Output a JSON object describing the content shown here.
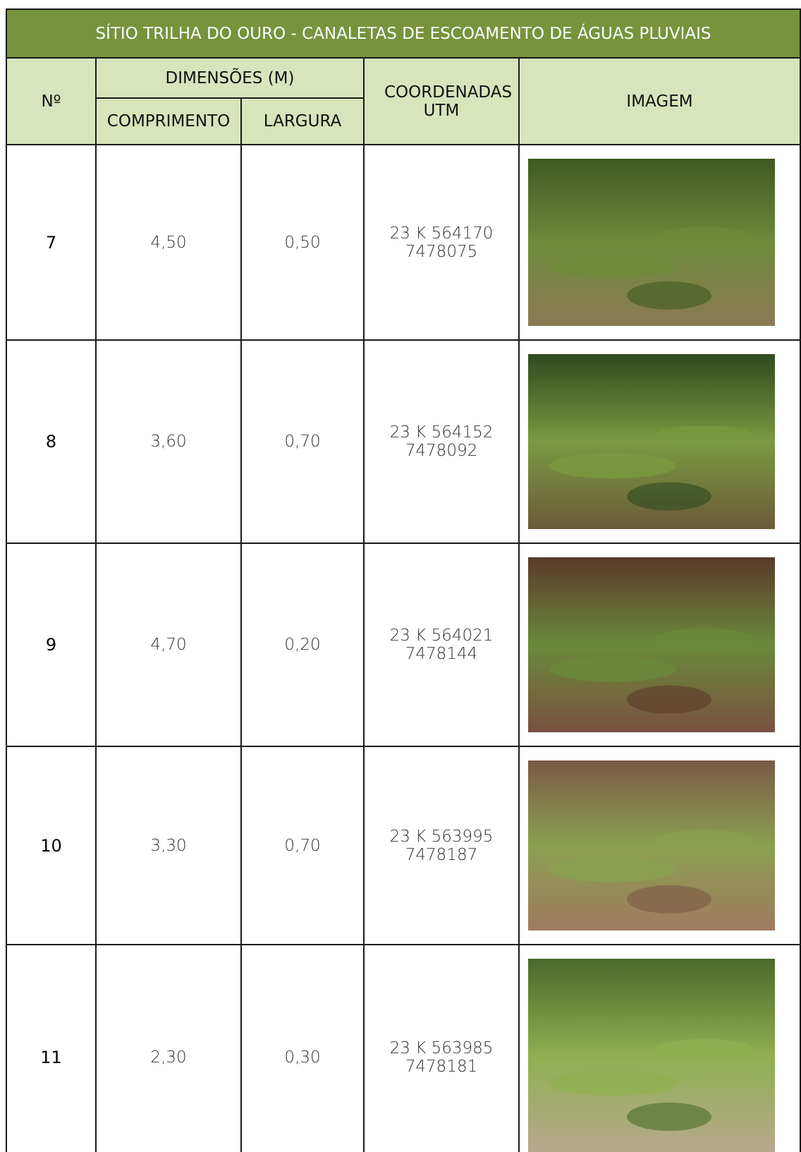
{
  "header": {
    "title": "SÍTIO TRILHA DO OURO - CANALETAS DE ESCOAMENTO DE ÁGUAS PLUVIAIS",
    "number": "Nº",
    "dimensions": "DIMENSÕES (M)",
    "length": "COMPRIMENTO",
    "width": "LARGURA",
    "coordinates": "COORDENADAS UTM",
    "image": "IMAGEM"
  },
  "table": {
    "rows": [
      {
        "number": "7",
        "length": "4,50",
        "width": "0,50",
        "coordinates": [
          "23 K 564170",
          "7478075"
        ]
      },
      {
        "number": "8",
        "length": "3,60",
        "width": "0,70",
        "coordinates": [
          "23 K 564152",
          "7478092"
        ]
      },
      {
        "number": "9",
        "length": "4,70",
        "width": "0,20",
        "coordinates": [
          "23 K 564021",
          "7478144"
        ]
      },
      {
        "number": "10",
        "length": "3,30",
        "width": "0,70",
        "coordinates": [
          "23 K 563995",
          "7478187"
        ]
      },
      {
        "number": "11",
        "length": "2,30",
        "width": "0,30",
        "coordinates": [
          "23 K 563985",
          "7478181"
        ]
      }
    ]
  }
}
